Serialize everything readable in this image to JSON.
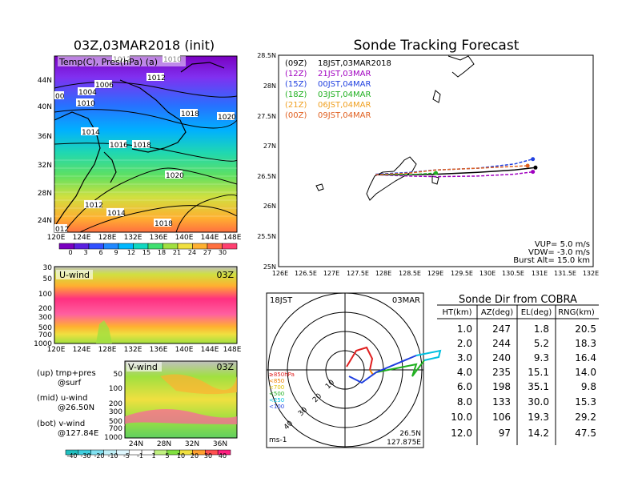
{
  "left_panel": {
    "title": "03Z,03MAR2018 (init)",
    "map_label": "Temp(C), Pres(hPa) (a)",
    "lat_ticks": [
      "44N",
      "40N",
      "36N",
      "32N",
      "28N",
      "24N"
    ],
    "lon_ticks": [
      "120E",
      "124E",
      "128E",
      "132E",
      "136E",
      "140E",
      "144E",
      "148E"
    ],
    "isobar_labels": [
      "1012",
      "1010",
      "1006",
      "1004",
      "1010",
      "1012",
      "1014",
      "1016",
      "1018",
      "1018",
      "1020",
      "1020",
      "1012",
      "1014",
      "1018",
      "012",
      "00"
    ],
    "colorbar_ticks": [
      "0",
      "3",
      "6",
      "9",
      "12",
      "15",
      "18",
      "21",
      "24",
      "27",
      "30"
    ],
    "colorbar_colors": [
      "#7a00c0",
      "#5a20e0",
      "#3050ff",
      "#2088ff",
      "#00b8ff",
      "#10d8c0",
      "#40e070",
      "#a0e040",
      "#f0e040",
      "#ffb030",
      "#ff7040",
      "#ff4070"
    ]
  },
  "u_panel": {
    "label": "U-wind",
    "time": "03Z",
    "p_ticks": [
      "30",
      "50",
      "100",
      "200",
      "300",
      "500",
      "700",
      "1000"
    ],
    "lon_ticks": [
      "120E",
      "124E",
      "128E",
      "132E",
      "136E",
      "140E",
      "144E",
      "148E"
    ]
  },
  "v_panel": {
    "label": "V-wind",
    "time": "03Z",
    "p_ticks": [
      "50",
      "100",
      "200",
      "300",
      "500",
      "700",
      "1000"
    ],
    "lat_ticks": [
      "24N",
      "28N",
      "32N",
      "36N"
    ]
  },
  "legend_notes": {
    "up1": "(up) tmp+pres",
    "up2": "@surf",
    "mid1": "(mid) u-wind",
    "mid2": "@26.50N",
    "bot1": "(bot) v-wind",
    "bot2": "@127.84E"
  },
  "wind_colorbar_ticks": [
    "-40",
    "-30",
    "-20",
    "-10",
    "-5",
    "-1",
    "1",
    "5",
    "10",
    "20",
    "30",
    "40"
  ],
  "tracking": {
    "title": "Sonde Tracking Forecast",
    "lat_ticks": [
      "28.5N",
      "28N",
      "27.5N",
      "27N",
      "26.5N",
      "26N",
      "25.5N",
      "25N"
    ],
    "lon_ticks": [
      "126E",
      "126.5E",
      "127E",
      "127.5E",
      "128E",
      "128.5E",
      "129E",
      "129.5E",
      "130E",
      "130.5E",
      "131E",
      "131.5E",
      "132E"
    ],
    "legend": [
      {
        "code": "(09Z)",
        "text": "18JST,03MAR2018",
        "color": "#000000"
      },
      {
        "code": "(12Z)",
        "text": "21JST,03MAR",
        "color": "#a000c0"
      },
      {
        "code": "(15Z)",
        "text": "00JST,04MAR",
        "color": "#2040e0"
      },
      {
        "code": "(18Z)",
        "text": "03JST,04MAR",
        "color": "#20b020"
      },
      {
        "code": "(21Z)",
        "text": "06JST,04MAR",
        "color": "#f0a020"
      },
      {
        "code": "(00Z)",
        "text": "09JST,04MAR",
        "color": "#e06020"
      }
    ],
    "vup": "VUP= 5.0 m/s",
    "vdw": "VDW= -3.0 m/s",
    "burst": "Burst Alt= 15.0 km"
  },
  "hodo": {
    "time": "18JST",
    "date": "03MAR",
    "ring_labels": [
      "10",
      "20",
      "30",
      "40"
    ],
    "unit": "ms-1",
    "lat": "26.5N",
    "lon": "127.875E",
    "levels": [
      {
        "text": "≥850hPa",
        "color": "#e02020"
      },
      {
        "text": "<850",
        "color": "#f08000"
      },
      {
        "text": "<700",
        "color": "#e0c000"
      },
      {
        "text": "<500",
        "color": "#20b020"
      },
      {
        "text": "<250",
        "color": "#00c0e0"
      },
      {
        "text": "<100",
        "color": "#2040e0"
      }
    ]
  },
  "sonde_table": {
    "title": "Sonde Dir from COBRA",
    "headers": [
      "HT(km)",
      "AZ(deg)",
      "EL(deg)",
      "RNG(km)"
    ],
    "rows": [
      [
        "1.0",
        "247",
        "1.8",
        "20.5"
      ],
      [
        "2.0",
        "244",
        "5.2",
        "18.3"
      ],
      [
        "3.0",
        "240",
        "9.3",
        "16.4"
      ],
      [
        "4.0",
        "235",
        "15.1",
        "14.0"
      ],
      [
        "6.0",
        "198",
        "35.1",
        "9.8"
      ],
      [
        "8.0",
        "133",
        "30.0",
        "15.3"
      ],
      [
        "10.0",
        "106",
        "19.3",
        "29.2"
      ],
      [
        "12.0",
        "97",
        "14.2",
        "47.5"
      ]
    ]
  },
  "chart_data": [
    {
      "type": "line",
      "title": "Sonde Tracking Forecast",
      "xlabel": "",
      "ylabel": "",
      "xlim": [
        126,
        132
      ],
      "ylim": [
        25,
        28.5
      ],
      "series": [
        {
          "name": "(09Z) 18JST,03MAR2018",
          "x": [
            127.85,
            128.5,
            129.0,
            129.8,
            130.5,
            130.9
          ],
          "y": [
            26.52,
            26.52,
            26.53,
            26.56,
            26.6,
            26.64
          ]
        },
        {
          "name": "(12Z) 21JST,03MAR",
          "x": [
            127.85,
            128.5,
            129.0,
            129.8,
            130.5,
            130.85
          ],
          "y": [
            26.52,
            26.5,
            26.49,
            26.5,
            26.53,
            26.57
          ]
        },
        {
          "name": "(15Z) 00JST,04MAR",
          "x": [
            127.85,
            128.5,
            129.0,
            129.8,
            130.5,
            130.85
          ],
          "y": [
            26.53,
            26.56,
            26.6,
            26.63,
            26.7,
            26.78
          ]
        },
        {
          "name": "(18Z) 03JST,04MAR",
          "x": [
            127.85,
            128.5,
            129.0
          ],
          "y": [
            26.52,
            26.52,
            26.55
          ]
        },
        {
          "name": "(00Z) 09JST,04MAR",
          "x": [
            127.85,
            128.5,
            129.0,
            129.8,
            130.5,
            130.75
          ],
          "y": [
            26.52,
            26.55,
            26.6,
            26.63,
            26.66,
            26.67
          ]
        }
      ]
    }
  ]
}
